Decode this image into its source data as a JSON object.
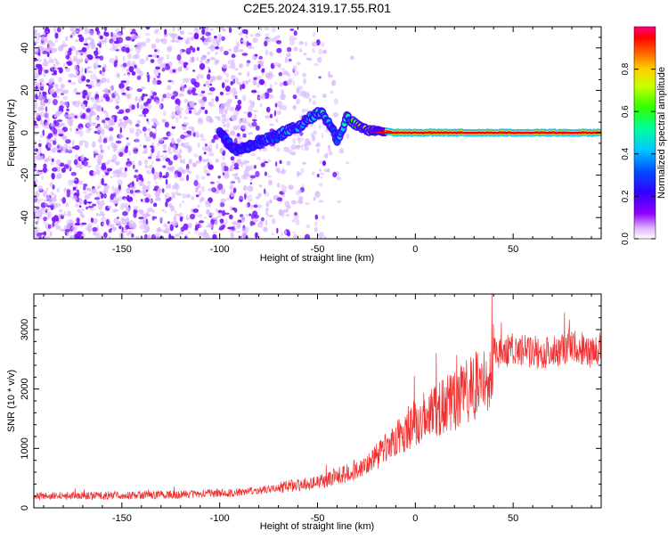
{
  "title": "C2E5.2024.319.17.55.R01",
  "chart_data": [
    {
      "type": "heatmap",
      "xlabel": "Height of straight line (km)",
      "ylabel": "Frequency (Hz)",
      "xlim": [
        -195,
        95
      ],
      "ylim": [
        -50,
        50
      ],
      "xticks": [
        -150,
        -100,
        -50,
        0,
        50
      ],
      "yticks": [
        -40,
        -20,
        0,
        20,
        40
      ],
      "colorbar": {
        "label": "Normalized spectral amplitude",
        "range": [
          0,
          1
        ],
        "ticks": [
          "0.0",
          "0.2",
          "0.4",
          "0.6",
          "0.8"
        ]
      },
      "signal_track": [
        {
          "x": -100,
          "y": 0,
          "amp": 0.25
        },
        {
          "x": -92,
          "y": -8,
          "amp": 0.2
        },
        {
          "x": -82,
          "y": -5,
          "amp": 0.28
        },
        {
          "x": -72,
          "y": -2,
          "amp": 0.32
        },
        {
          "x": -62,
          "y": 2,
          "amp": 0.36
        },
        {
          "x": -55,
          "y": 6,
          "amp": 0.4
        },
        {
          "x": -48,
          "y": 10,
          "amp": 0.42
        },
        {
          "x": -40,
          "y": -3,
          "amp": 0.3
        },
        {
          "x": -35,
          "y": 7,
          "amp": 0.5
        },
        {
          "x": -28,
          "y": 3,
          "amp": 0.65
        },
        {
          "x": -20,
          "y": 1,
          "amp": 0.85
        },
        {
          "x": -10,
          "y": 0,
          "amp": 0.95
        },
        {
          "x": 0,
          "y": 0,
          "amp": 0.97
        },
        {
          "x": 10,
          "y": 0,
          "amp": 0.98
        },
        {
          "x": 30,
          "y": 0,
          "amp": 0.99
        },
        {
          "x": 50,
          "y": 0,
          "amp": 0.99
        },
        {
          "x": 70,
          "y": 0,
          "amp": 0.98
        },
        {
          "x": 95,
          "y": 0,
          "amp": 0.99
        }
      ]
    },
    {
      "type": "line",
      "xlabel": "Height of straight line (km)",
      "ylabel": "SNR (10 * v/v)",
      "xlim": [
        -195,
        95
      ],
      "ylim": [
        0,
        3600
      ],
      "xticks": [
        -150,
        -100,
        -50,
        0,
        50
      ],
      "yticks": [
        0,
        1000,
        2000,
        3000
      ],
      "series": [
        {
          "color": "#f03030",
          "x": [
            -195,
            -180,
            -160,
            -140,
            -120,
            -100,
            -90,
            -80,
            -70,
            -60,
            -50,
            -40,
            -30,
            -20,
            -10,
            0,
            10,
            20,
            30,
            38,
            40,
            50,
            60,
            70,
            80,
            90,
            95
          ],
          "y": [
            190,
            200,
            205,
            215,
            225,
            245,
            260,
            290,
            340,
            380,
            430,
            520,
            650,
            850,
            1150,
            1450,
            1650,
            1800,
            2050,
            2150,
            2600,
            2680,
            2620,
            2620,
            2750,
            2620,
            2700
          ]
        }
      ]
    }
  ]
}
